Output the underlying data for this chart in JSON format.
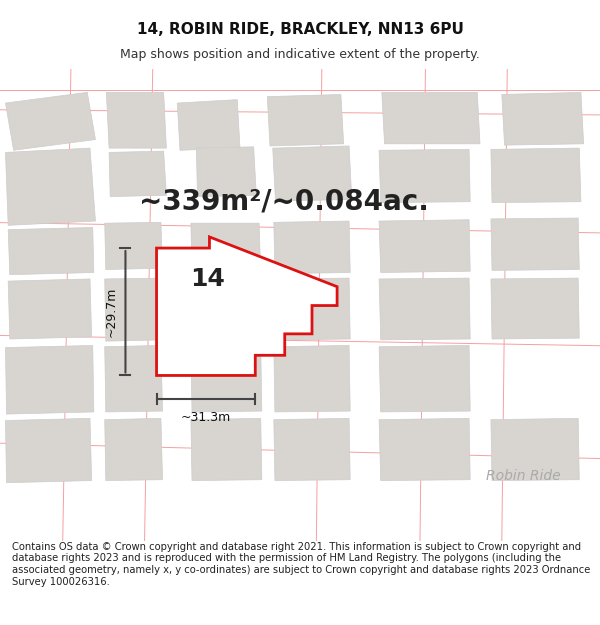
{
  "title": "14, ROBIN RIDE, BRACKLEY, NN13 6PU",
  "subtitle": "Map shows position and indicative extent of the property.",
  "footer": "Contains OS data © Crown copyright and database right 2021. This information is subject to Crown copyright and database rights 2023 and is reproduced with the permission of HM Land Registry. The polygons (including the associated geometry, namely x, y co-ordinates) are subject to Crown copyright and database rights 2023 Ordnance Survey 100026316.",
  "area_text": "~339m²/~0.084ac.",
  "width_label": "~31.3m",
  "height_label": "~29.7m",
  "plot_number": "14",
  "street_label": "Robin Ride",
  "bg_color": "#ffffff",
  "map_bg": "#ffffff",
  "plot_fill": "#ffffff",
  "plot_edge_color": "#dd1111",
  "road_color": "#f5a0a0",
  "building_fill": "#d8d5d0",
  "building_edge": "#cccccc",
  "dim_line_color": "#444444",
  "title_fontsize": 11,
  "subtitle_fontsize": 9,
  "footer_fontsize": 7.2,
  "area_fontsize": 20,
  "plot_label_fontsize": 18,
  "dim_fontsize": 9,
  "street_fontsize": 10
}
